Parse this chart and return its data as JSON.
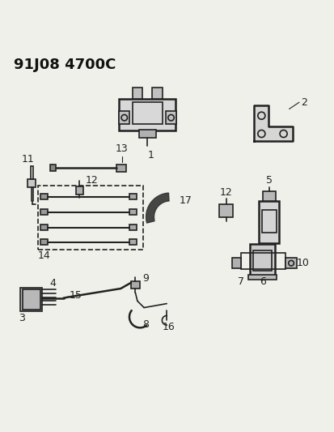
{
  "title": "91J08 4700C",
  "bg_color": "#f0f0eb",
  "line_color": "#222222",
  "label_color": "#111111",
  "title_fontsize": 13,
  "label_fontsize": 9,
  "fig_width": 4.14,
  "fig_height": 5.33,
  "dpi": 100
}
